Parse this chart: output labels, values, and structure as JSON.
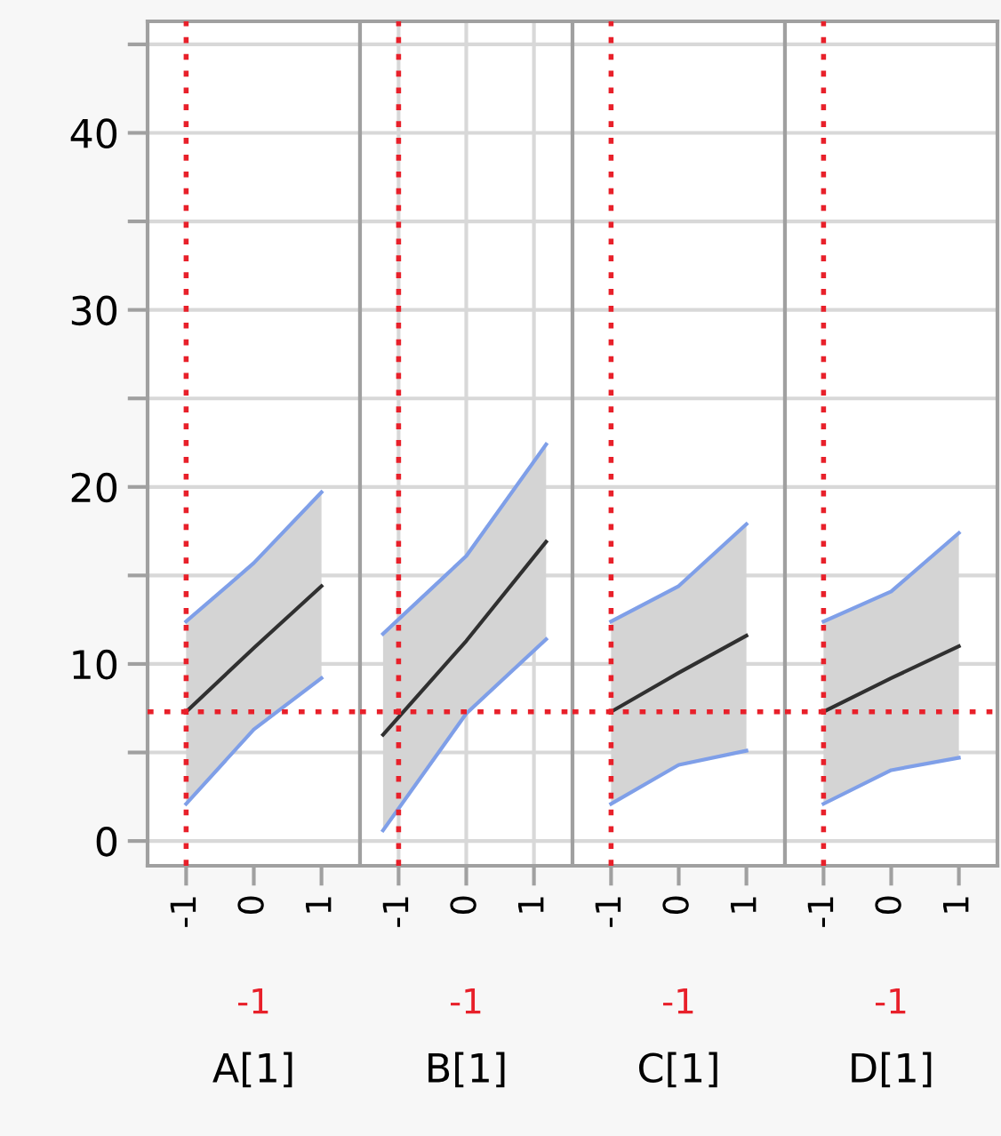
{
  "chart_data": [
    {
      "type": "line",
      "xlabel": "A[1]",
      "xlim": [
        -1.57,
        1.57
      ],
      "xticks": [
        -1,
        0,
        1
      ],
      "ylim": [
        -1.4,
        46.3
      ],
      "yticks": [
        0,
        {
          "value": 5,
          "label": null
        },
        10,
        {
          "value": 15,
          "label": null
        },
        20,
        {
          "value": 25,
          "label": null
        },
        30,
        {
          "value": 35,
          "label": null
        },
        40,
        {
          "value": 45,
          "label": null
        }
      ],
      "grid": "y",
      "series": [
        {
          "color": "#303030",
          "x": [
            -1,
            0,
            1
          ],
          "values": [
            7.3,
            10.9,
            14.4
          ],
          "lower": [
            2.1,
            6.3,
            9.2
          ],
          "upper": [
            12.4,
            15.7,
            19.7
          ]
        },
        {
          "color": "#7f9fe8",
          "x": [
            -1,
            0,
            1
          ],
          "values": [
            2.1,
            6.3,
            9.2
          ]
        },
        {
          "color": "#7f9fe8",
          "x": [
            -1,
            0,
            1
          ],
          "values": [
            12.4,
            15.7,
            19.7
          ]
        }
      ],
      "ref_lines": [
        {
          "axis": "x",
          "value": -1,
          "label": "-1",
          "color": "#e8202a",
          "line_style": "dotted"
        },
        {
          "axis": "y",
          "value": 7.3,
          "label": null,
          "color": "#e8202a",
          "line_style": "dotted"
        }
      ]
    },
    {
      "type": "line",
      "xlabel": "B[1]",
      "xlim": [
        -1.57,
        1.57
      ],
      "xticks": [
        -1,
        0,
        1
      ],
      "ylim": [
        -1.4,
        46.3
      ],
      "yticks": [
        0,
        {
          "value": 5,
          "label": null
        },
        10,
        {
          "value": 15,
          "label": null
        },
        20,
        {
          "value": 25,
          "label": null
        },
        30,
        {
          "value": 35,
          "label": null
        },
        40,
        {
          "value": 45,
          "label": null
        }
      ],
      "grid": true,
      "tick_labels": "x",
      "series": [
        {
          "color": "#303030",
          "x": [
            -1.23,
            0,
            1.18
          ],
          "values": [
            6.0,
            11.3,
            16.9
          ],
          "lower": [
            0.6,
            7.2,
            11.4
          ],
          "upper": [
            11.7,
            16.1,
            22.4
          ]
        },
        {
          "color": "#7f9fe8",
          "x": [
            -1.23,
            0,
            1.18
          ],
          "values": [
            0.6,
            7.2,
            11.4
          ]
        },
        {
          "color": "#7f9fe8",
          "x": [
            -1.23,
            0,
            1.18
          ],
          "values": [
            11.7,
            16.1,
            22.4
          ]
        }
      ],
      "ref_lines": [
        {
          "axis": "x",
          "value": -1,
          "label": "-1",
          "color": "#e8202a",
          "line_style": "dotted"
        },
        {
          "axis": "y",
          "value": 7.3,
          "label": null,
          "color": "#e8202a",
          "line_style": "dotted"
        }
      ]
    },
    {
      "type": "line",
      "xlabel": "C[1]",
      "xlim": [
        -1.57,
        1.57
      ],
      "xticks": [
        -1,
        0,
        1
      ],
      "ylim": [
        -1.4,
        46.3
      ],
      "yticks": [
        0,
        {
          "value": 5,
          "label": null
        },
        10,
        {
          "value": 15,
          "label": null
        },
        20,
        {
          "value": 25,
          "label": null
        },
        30,
        {
          "value": 35,
          "label": null
        },
        40,
        {
          "value": 45,
          "label": null
        }
      ],
      "grid": "y",
      "tick_labels": "x",
      "series": [
        {
          "color": "#303030",
          "x": [
            -1,
            0,
            1
          ],
          "values": [
            7.3,
            9.5,
            11.6
          ],
          "lower": [
            2.1,
            4.3,
            5.1
          ],
          "upper": [
            12.4,
            14.4,
            17.9
          ]
        },
        {
          "color": "#7f9fe8",
          "x": [
            -1,
            0,
            1
          ],
          "values": [
            2.1,
            4.3,
            5.1
          ]
        },
        {
          "color": "#7f9fe8",
          "x": [
            -1,
            0,
            1
          ],
          "values": [
            12.4,
            14.4,
            17.9
          ]
        }
      ],
      "ref_lines": [
        {
          "axis": "x",
          "value": -1,
          "label": "-1",
          "color": "#e8202a",
          "line_style": "dotted"
        },
        {
          "axis": "y",
          "value": 7.3,
          "label": null,
          "color": "#e8202a",
          "line_style": "dotted"
        }
      ]
    },
    {
      "type": "line",
      "xlabel": "D[1]",
      "xlim": [
        -1.57,
        1.57
      ],
      "xticks": [
        -1,
        0,
        1
      ],
      "ylim": [
        -1.4,
        46.3
      ],
      "yticks": [
        0,
        {
          "value": 5,
          "label": null
        },
        10,
        {
          "value": 15,
          "label": null
        },
        20,
        {
          "value": 25,
          "label": null
        },
        30,
        {
          "value": 35,
          "label": null
        },
        40,
        {
          "value": 45,
          "label": null
        }
      ],
      "grid": "y",
      "tick_labels": "x",
      "series": [
        {
          "color": "#303030",
          "x": [
            -1,
            0,
            1
          ],
          "values": [
            7.3,
            9.2,
            11.0
          ],
          "lower": [
            2.1,
            4.0,
            4.7
          ],
          "upper": [
            12.4,
            14.1,
            17.4
          ]
        },
        {
          "color": "#7f9fe8",
          "x": [
            -1,
            0,
            1
          ],
          "values": [
            2.1,
            4.0,
            4.7
          ]
        },
        {
          "color": "#7f9fe8",
          "x": [
            -1,
            0,
            1
          ],
          "values": [
            12.4,
            14.1,
            17.4
          ]
        }
      ],
      "ref_lines": [
        {
          "axis": "x",
          "value": -1,
          "label": "-1",
          "color": "#e8202a",
          "line_style": "dotted"
        },
        {
          "axis": "y",
          "value": 7.3,
          "label": null,
          "color": "#e8202a",
          "line_style": "dotted"
        }
      ]
    }
  ]
}
